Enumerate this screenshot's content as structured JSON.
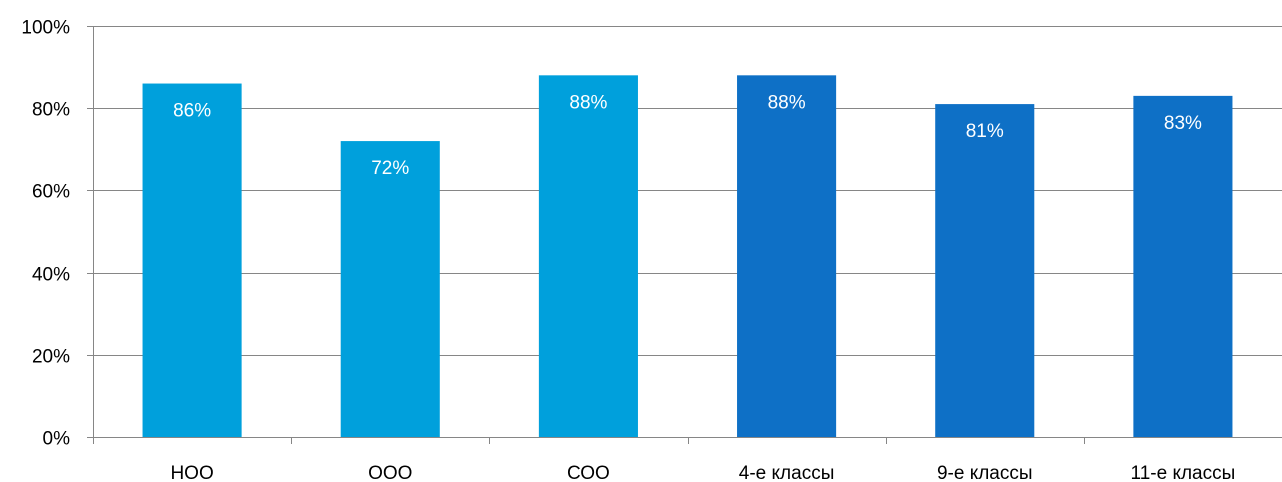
{
  "chart_data": {
    "type": "bar",
    "categories": [
      "НОО",
      "ООО",
      "СОО",
      "4-е классы",
      "9-е классы",
      "11-е классы"
    ],
    "values": [
      86,
      72,
      88,
      88,
      81,
      83
    ],
    "data_labels": [
      "86%",
      "72%",
      "88%",
      "88%",
      "81%",
      "83%"
    ],
    "bar_colors": [
      "#00A0DC",
      "#00A0DC",
      "#00A0DC",
      "#0E70C6",
      "#0E70C6",
      "#0E70C6"
    ],
    "title": "",
    "xlabel": "",
    "ylabel": "",
    "ylim": [
      0,
      100
    ],
    "y_ticks": [
      0,
      20,
      40,
      60,
      80,
      100
    ],
    "y_tick_labels": [
      "0%",
      "20%",
      "40%",
      "60%",
      "80%",
      "100%"
    ],
    "grid": true,
    "legend": "none",
    "colors": {
      "grid": "#868686",
      "axis": "#868686",
      "tick_text": "#000000",
      "data_label_text": "#ffffff"
    }
  }
}
